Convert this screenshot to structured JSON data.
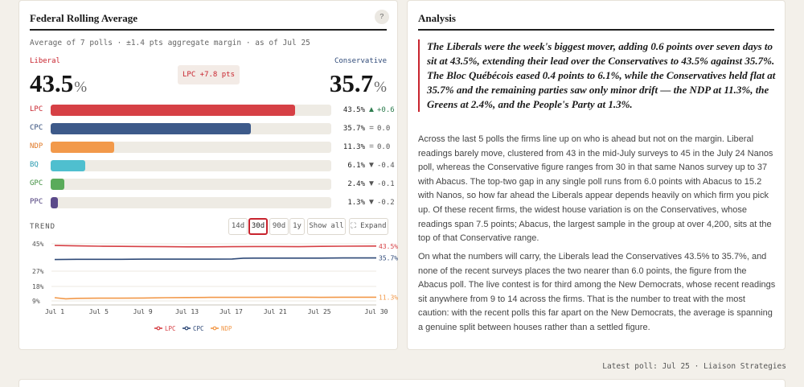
{
  "left": {
    "title": "Federal Rolling Average",
    "help": "?",
    "subline": "Average of 7 polls · ±1.4 pts aggregate margin · as of Jul 25",
    "leader": {
      "name": "Liberal",
      "value": "43.5",
      "unit": "%",
      "color": "#c8242e"
    },
    "runner": {
      "name": "Conservative",
      "value": "35.7",
      "unit": "%",
      "color": "#2f4a78"
    },
    "margin_badge": "LPC +7.8 pts"
  },
  "bars": [
    {
      "abbr": "LPC",
      "share": 43.5,
      "value": "43.5%",
      "sym": "▲",
      "change": "+0.6",
      "color": "#d64045",
      "text_color": "#c8242e",
      "chg_color": "#2e7d4f"
    },
    {
      "abbr": "CPC",
      "share": 35.7,
      "value": "35.7%",
      "sym": "=",
      "change": "0.0",
      "color": "#3d5a8a",
      "text_color": "#2f4a78",
      "chg_color": "#555555"
    },
    {
      "abbr": "NDP",
      "share": 11.3,
      "value": "11.3%",
      "sym": "=",
      "change": "0.0",
      "color": "#f2994a",
      "text_color": "#e07b2a",
      "chg_color": "#555555"
    },
    {
      "abbr": "BQ",
      "share": 6.1,
      "value": "6.1%",
      "sym": "▼",
      "change": "-0.4",
      "color": "#4fbfcf",
      "text_color": "#2a9bb0",
      "chg_color": "#555555"
    },
    {
      "abbr": "GPC",
      "share": 2.4,
      "value": "2.4%",
      "sym": "▼",
      "change": "-0.1",
      "color": "#5aab5a",
      "text_color": "#3f8f3f",
      "chg_color": "#555555"
    },
    {
      "abbr": "PPC",
      "share": 1.3,
      "value": "1.3%",
      "sym": "▼",
      "change": "-0.2",
      "color": "#5b4a8a",
      "text_color": "#4b3b7a",
      "chg_color": "#555555"
    }
  ],
  "bar_scale_max": 50,
  "trend": {
    "label": "TREND",
    "ranges": [
      "14d",
      "30d",
      "90d",
      "1y"
    ],
    "active_range": "30d",
    "show_all": "Show all",
    "expand": "⛶ Expand"
  },
  "chart_data": {
    "type": "line",
    "x_ticks": [
      "Jul 1",
      "Jul 5",
      "Jul 9",
      "Jul 13",
      "Jul 17",
      "Jul 21",
      "Jul 25",
      "Jul 30"
    ],
    "x_range": [
      1,
      30
    ],
    "panels": [
      {
        "y_ticks": [
          45,
          27
        ],
        "ylim": [
          27,
          45
        ]
      },
      {
        "y_ticks": [
          18,
          9
        ],
        "ylim": [
          9,
          18
        ]
      }
    ],
    "series": [
      {
        "name": "LPC",
        "color": "#d64045",
        "panel": 0,
        "end_label": "43.5%",
        "x": [
          1,
          3,
          5,
          7,
          9,
          11,
          13,
          15,
          17,
          19,
          21,
          23,
          25,
          27,
          30
        ],
        "y": [
          43.9,
          43.6,
          43.4,
          43.3,
          43.2,
          43.1,
          43.0,
          43.0,
          43.1,
          43.2,
          43.2,
          43.1,
          43.3,
          43.4,
          43.5
        ]
      },
      {
        "name": "CPC",
        "color": "#2f4a78",
        "panel": 0,
        "end_label": "35.7%",
        "x": [
          1,
          3,
          5,
          7,
          9,
          11,
          13,
          15,
          17,
          18,
          19,
          21,
          23,
          25,
          27,
          30
        ],
        "y": [
          34.6,
          34.8,
          34.8,
          34.8,
          34.9,
          34.9,
          34.9,
          34.9,
          35.0,
          35.5,
          35.6,
          35.6,
          35.6,
          35.6,
          35.7,
          35.7
        ]
      },
      {
        "name": "NDP",
        "color": "#f2994a",
        "panel": 1,
        "end_label": "11.3%",
        "x": [
          1,
          2,
          3,
          5,
          7,
          9,
          11,
          13,
          15,
          17,
          19,
          21,
          23,
          25,
          27,
          30
        ],
        "y": [
          11.0,
          10.3,
          10.6,
          10.7,
          10.7,
          10.8,
          11.0,
          11.1,
          11.2,
          11.2,
          11.2,
          11.3,
          11.3,
          11.2,
          11.3,
          11.3
        ]
      }
    ],
    "legend": "bottom-center"
  },
  "right": {
    "title": "Analysis",
    "quote": "The Liberals were the week's biggest mover, adding 0.6 points over seven days to sit at 43.5%, extending their lead over the Conservatives to 43.5% against 35.7%. The Bloc Québécois eased 0.4 points to 6.1%, while the Conservatives held flat at 35.7% and the remaining parties saw only minor drift — the NDP at 11.3%, the Greens at 2.4%, and the People's Party at 1.3%.",
    "para1": "Across the last 5 polls the firms line up on who is ahead but not on the margin. Liberal readings barely move, clustered from 43 in the mid-July surveys to 45 in the July 24 Nanos poll, whereas the Conservative figure ranges from 30 in that same Nanos survey up to 37 with Abacus. The top-two gap in any single poll runs from 6.0 points with Abacus to 15.2 with Nanos, so how far ahead the Liberals appear depends heavily on which firm you pick up. Of these recent firms, the widest house variation is on the Conservatives, whose readings span 7.5 points; Abacus, the largest sample in the group at over 4,200, sits at the top of that Conservative range.",
    "para2": "On what the numbers will carry, the Liberals lead the Conservatives 43.5% to 35.7%, and none of the recent surveys places the two nearer than 6.0 points, the figure from the Abacus poll. The live contest is for third among the New Democrats, whose recent readings sit anywhere from 9 to 14 across the firms. That is the number to treat with the most caution: with the recent polls this far apart on the New Democrats, the average is spanning a genuine split between houses rather than a settled figure."
  },
  "footer": "Latest poll: Jul 25 · Liaison Strategies"
}
